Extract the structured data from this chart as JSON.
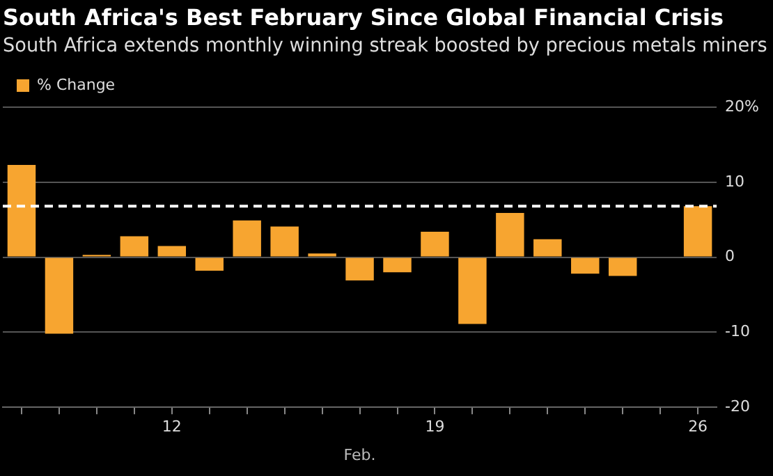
{
  "chart_data": {
    "type": "bar",
    "title": "South Africa's Best February Since Global Financial Crisis",
    "subtitle": "South Africa extends monthly winning streak boosted by precious metals miners",
    "xlabel": "Feb.",
    "categories": [
      null,
      null,
      null,
      null,
      "12",
      null,
      null,
      null,
      null,
      null,
      null,
      "19",
      null,
      null,
      null,
      null,
      null,
      null,
      "26"
    ],
    "series": [
      {
        "name": "% Change",
        "color": "#f7a530",
        "values": [
          12.3,
          -10.2,
          0.3,
          2.8,
          1.5,
          -1.8,
          4.9,
          4.1,
          0.5,
          -3.1,
          -2.0,
          3.4,
          -8.9,
          5.9,
          2.4,
          -2.2,
          -2.5,
          null,
          6.8
        ]
      }
    ],
    "ylim": [
      -20,
      20
    ],
    "yticks": [
      -20,
      -10,
      0,
      10,
      {
        "value": 20,
        "label": "20%"
      }
    ],
    "ref_lines": [
      {
        "axis": "y",
        "value": 6.8,
        "color": "#ffffff",
        "line_style": "dashed"
      }
    ],
    "grid": "y",
    "legend": "top left"
  }
}
